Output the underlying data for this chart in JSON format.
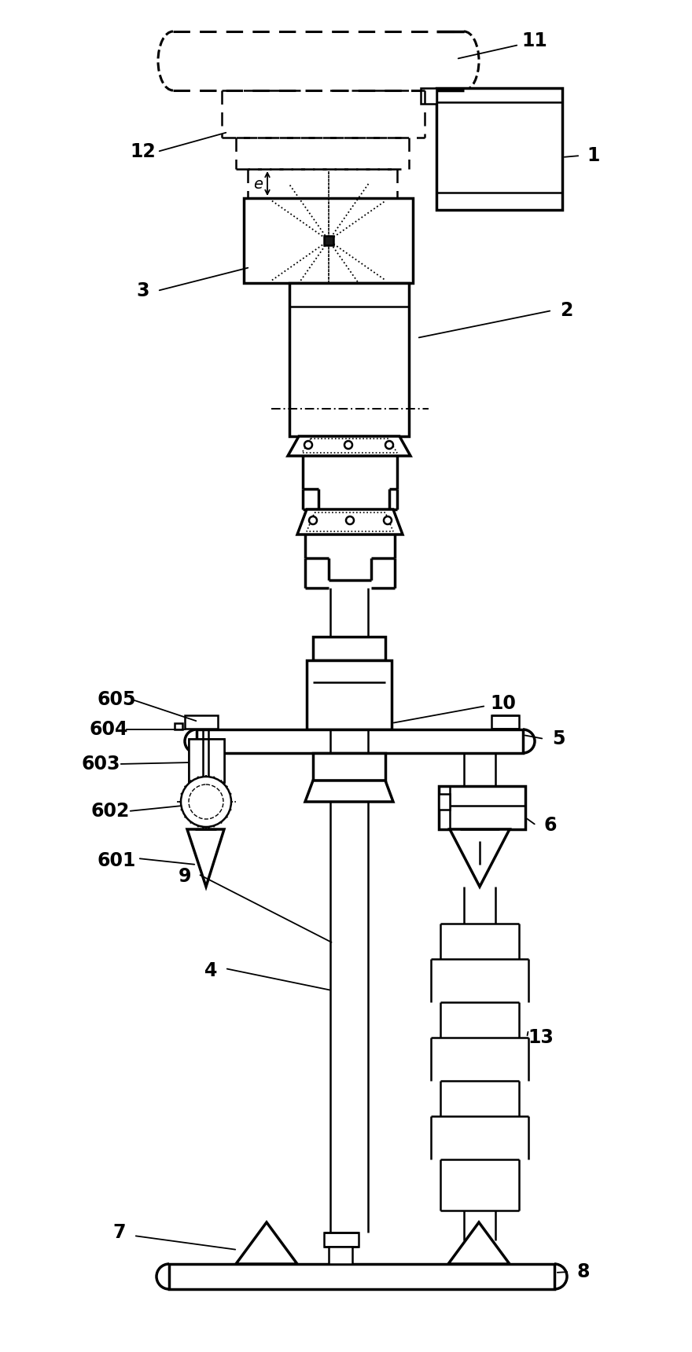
{
  "bg_color": "#ffffff",
  "line_color": "#000000",
  "lw": 1.8,
  "lw_thick": 2.5,
  "lw_thin": 1.0
}
